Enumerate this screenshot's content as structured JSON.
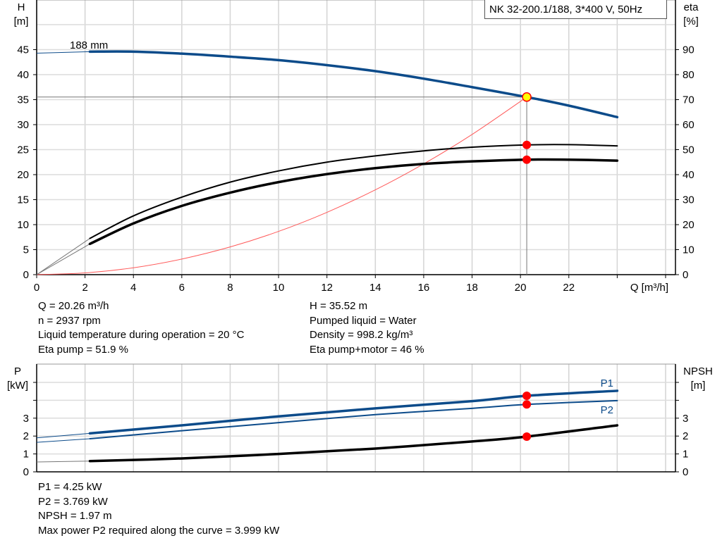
{
  "chart_data": [
    {
      "type": "line",
      "title": "NK 32-200.1/188, 3*400 V, 50Hz",
      "xlabel": "Q [m³/h]",
      "ylabel_left": [
        "H",
        "[m]"
      ],
      "ylabel_right": [
        "eta",
        "[%]"
      ],
      "xlim": [
        0,
        26
      ],
      "ylim_left": [
        0,
        50
      ],
      "ylim_right": [
        0,
        100
      ],
      "xticks": [
        0,
        2,
        4,
        6,
        8,
        10,
        12,
        14,
        16,
        18,
        20,
        22
      ],
      "yticks_left": [
        0,
        5,
        10,
        15,
        20,
        25,
        30,
        35,
        40,
        45
      ],
      "yticks_right": [
        0,
        10,
        20,
        30,
        40,
        50,
        60,
        70,
        80,
        90
      ],
      "grid": true,
      "curve_label": "188 mm",
      "colors": {
        "head": "#0c4b8a",
        "efficiency": "#000000",
        "system": "#ff5a5a",
        "duty_point": "#ffff00",
        "marker": "#ff0000"
      },
      "series": [
        {
          "key": "head",
          "axis": "left",
          "x": [
            0,
            2.2,
            4,
            6,
            8,
            10,
            12,
            14,
            16,
            18,
            20.26,
            22,
            24
          ],
          "y": [
            44.3,
            44.6,
            44.6,
            44.2,
            43.6,
            42.9,
            41.9,
            40.7,
            39.2,
            37.5,
            35.52,
            33.8,
            31.5
          ]
        },
        {
          "key": "eta_pump",
          "axis": "right",
          "x": [
            0,
            2.2,
            4,
            6,
            8,
            10,
            12,
            14,
            16,
            18,
            20.26,
            22,
            24
          ],
          "y": [
            0,
            14.5,
            23.5,
            31,
            37,
            41.5,
            45,
            47.5,
            49.5,
            51,
            51.9,
            52,
            51.5
          ]
        },
        {
          "key": "eta_pump_motor",
          "axis": "right",
          "x": [
            0,
            2.2,
            4,
            6,
            8,
            10,
            12,
            14,
            16,
            18,
            20.26,
            22,
            24
          ],
          "y": [
            0,
            12.3,
            20.5,
            27.5,
            32.8,
            37,
            40.2,
            42.6,
            44.3,
            45.3,
            46,
            46,
            45.6
          ]
        },
        {
          "key": "system",
          "axis": "left",
          "x": [
            0,
            2,
            4,
            6,
            8,
            10,
            12,
            14,
            16,
            18,
            20.26
          ],
          "y": [
            0,
            0.35,
            1.38,
            3.12,
            5.54,
            8.65,
            12.46,
            16.96,
            22.15,
            28.04,
            35.52
          ]
        }
      ],
      "duty_point": {
        "Q": 20.26,
        "H": 35.52,
        "eta_pump": 51.9,
        "eta_pump_motor": 46
      }
    },
    {
      "type": "line",
      "xlim": [
        0,
        26
      ],
      "ylabel_left": [
        "P",
        "[kW]"
      ],
      "ylabel_right": [
        "NPSH",
        "[m]"
      ],
      "ylim": [
        0,
        6
      ],
      "yticks": [
        0,
        1,
        2,
        3
      ],
      "grid": true,
      "series": [
        {
          "name": "P1",
          "x": [
            0,
            2.2,
            6,
            10,
            14,
            18,
            20.26,
            24
          ],
          "y": [
            1.9,
            2.15,
            2.6,
            3.1,
            3.55,
            3.95,
            4.25,
            4.53
          ]
        },
        {
          "name": "P2",
          "x": [
            0,
            2.2,
            6,
            10,
            14,
            18,
            20.26,
            24
          ],
          "y": [
            1.65,
            1.85,
            2.3,
            2.75,
            3.2,
            3.55,
            3.769,
            3.98
          ]
        },
        {
          "key": "npsh",
          "x": [
            0,
            2.2,
            6,
            10,
            14,
            18,
            20.26,
            24
          ],
          "y": [
            0.55,
            0.6,
            0.75,
            1.0,
            1.3,
            1.7,
            1.97,
            2.6
          ]
        }
      ]
    }
  ],
  "info_top_left": [
    "Q = 20.26 m³/h",
    "n = 2937 rpm",
    "Liquid temperature during operation = 20 °C",
    "Eta pump = 51.9 %"
  ],
  "info_top_right": [
    "H = 35.52 m",
    "Pumped liquid = Water",
    "Density = 998.2 kg/m³",
    "Eta pump+motor = 46 %"
  ],
  "info_bottom": [
    "P1 = 4.25 kW",
    "P2 = 3.769 kW",
    "NPSH = 1.97 m",
    "Max power P2 required along the curve = 3.999 kW"
  ]
}
